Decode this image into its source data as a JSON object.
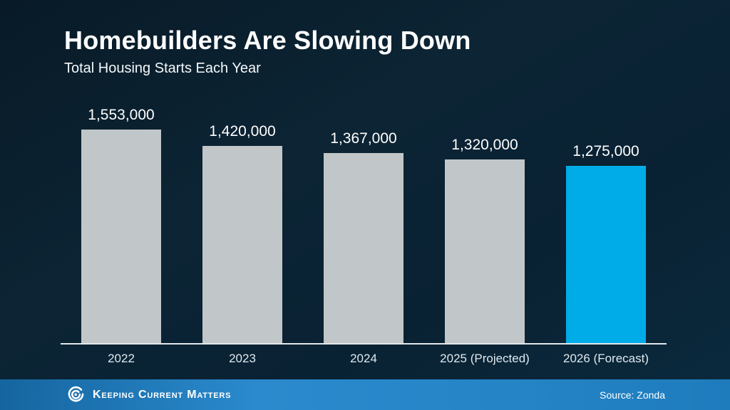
{
  "header": {
    "title": "Homebuilders Are Slowing Down",
    "subtitle": "Total Housing Starts Each Year"
  },
  "chart_data": {
    "type": "bar",
    "title": "Homebuilders Are Slowing Down",
    "subtitle": "Total Housing Starts Each Year",
    "categories": [
      "2022",
      "2023",
      "2024",
      "2025 (Projected)",
      "2026 (Forecast)"
    ],
    "values": [
      1553000,
      1420000,
      1367000,
      1320000,
      1275000
    ],
    "value_labels": [
      "1,553,000",
      "1,420,000",
      "1,367,000",
      "1,320,000",
      "1,275,000"
    ],
    "bar_colors": [
      "#c1c6c8",
      "#c1c6c8",
      "#c1c6c8",
      "#c1c6c8",
      "#00ace8"
    ],
    "highlight_index": 4,
    "xlabel": "",
    "ylabel": "",
    "ylim": [
      0,
      1600000
    ],
    "grid": false,
    "legend": null,
    "data_labels": "above bars",
    "baseline_axis": true
  },
  "footer": {
    "brand": "Keeping Current Matters",
    "source": "Source: Zonda"
  },
  "colors": {
    "background_top": "#081a27",
    "background_bottom": "#0b2a3e",
    "bar_gray": "#c1c6c8",
    "bar_highlight_blue": "#00ace8",
    "footer_blue": "#2484c6",
    "axis_line": "#e2e7e9",
    "text_white": "#ffffff"
  }
}
